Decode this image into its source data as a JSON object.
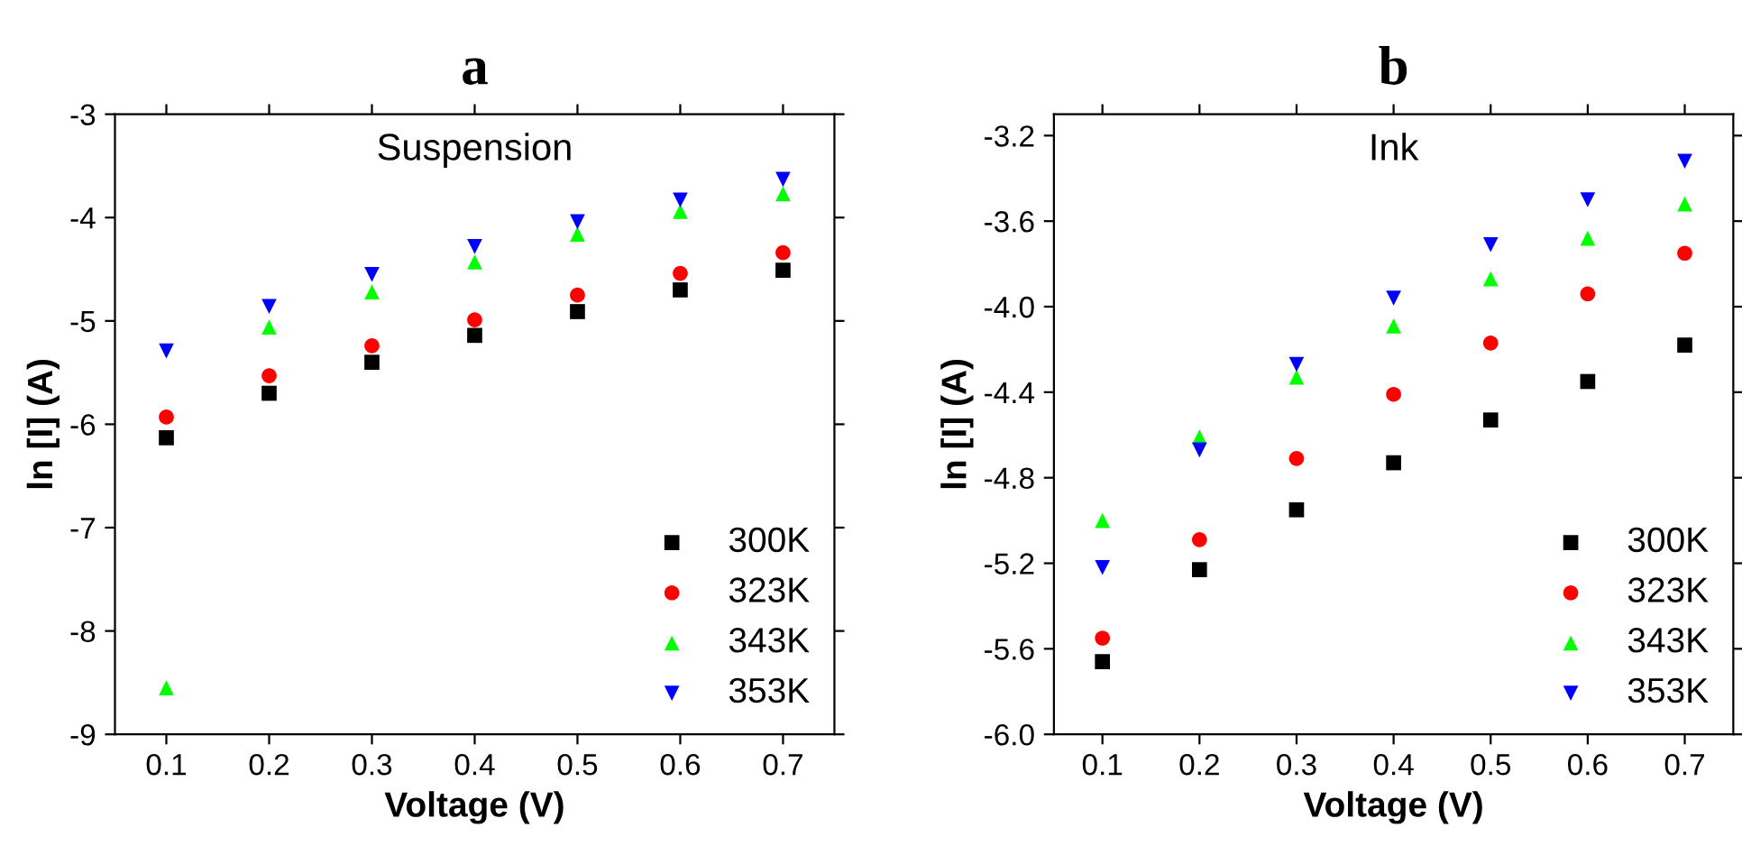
{
  "chart_data": [
    {
      "type": "scatter",
      "title": "a",
      "xlabel": "Voltage (V)",
      "ylabel": "ln [I] (A)",
      "annotations": [
        "Suspension"
      ],
      "x": [
        0.1,
        0.2,
        0.3,
        0.4,
        0.5,
        0.6,
        0.7
      ],
      "xlim": [
        0.05,
        0.75
      ],
      "xticks": [
        0.1,
        0.2,
        0.3,
        0.4,
        0.5,
        0.6,
        0.7
      ],
      "ylim": [
        -9,
        -3
      ],
      "yticks": [
        -9,
        -8,
        -7,
        -6,
        -5,
        -4,
        -3
      ],
      "legend": "bottom right",
      "grid": false,
      "series": [
        {
          "name": "300K",
          "color": "#000000",
          "marker": "square",
          "values": [
            -6.13,
            -5.7,
            -5.4,
            -5.14,
            -4.91,
            -4.7,
            -4.51
          ]
        },
        {
          "name": "323K",
          "color": "#ff0000",
          "marker": "circle",
          "values": [
            -5.93,
            -5.53,
            -5.24,
            -4.99,
            -4.75,
            -4.54,
            -4.34
          ]
        },
        {
          "name": "343K",
          "color": "#00ff00",
          "marker": "triangle",
          "values": [
            -8.55,
            -5.06,
            -4.72,
            -4.43,
            -4.16,
            -3.94,
            -3.77
          ]
        },
        {
          "name": "353K",
          "color": "#0000ff",
          "marker": "triangle_down",
          "values": [
            -5.29,
            -4.86,
            -4.55,
            -4.28,
            -4.04,
            -3.83,
            -3.63
          ]
        }
      ]
    },
    {
      "type": "scatter",
      "title": "b",
      "xlabel": "Voltage (V)",
      "ylabel": "ln [I] (A)",
      "annotations": [
        "Ink"
      ],
      "x": [
        0.1,
        0.2,
        0.3,
        0.4,
        0.5,
        0.6,
        0.7
      ],
      "xlim": [
        0.05,
        0.75
      ],
      "xticks": [
        0.1,
        0.2,
        0.3,
        0.4,
        0.5,
        0.6,
        0.7
      ],
      "ylim": [
        -6.0,
        -3.1
      ],
      "yticks": [
        {
          "value": -6.0,
          "label": "-6.0"
        },
        {
          "value": -5.6,
          "label": "-5.6"
        },
        {
          "value": -5.2,
          "label": "-5.2"
        },
        {
          "value": -4.8,
          "label": "-4.8"
        },
        {
          "value": -4.4,
          "label": "-4.4"
        },
        {
          "value": -4.0,
          "label": "-4.0"
        },
        {
          "value": -3.6,
          "label": "-3.6"
        },
        {
          "value": -3.2,
          "label": "-3.2"
        }
      ],
      "legend": "bottom right",
      "grid": false,
      "series": [
        {
          "name": "300K",
          "color": "#000000",
          "marker": "square",
          "values": [
            -5.66,
            -5.23,
            -4.95,
            -4.73,
            -4.53,
            -4.35,
            -4.18
          ]
        },
        {
          "name": "323K",
          "color": "#ff0000",
          "marker": "circle",
          "values": [
            -5.55,
            -5.09,
            -4.71,
            -4.41,
            -4.17,
            -3.94,
            -3.75
          ]
        },
        {
          "name": "343K",
          "color": "#00ff00",
          "marker": "triangle",
          "values": [
            -5.0,
            -4.61,
            -4.33,
            -4.09,
            -3.87,
            -3.68,
            -3.52
          ]
        },
        {
          "name": "353K",
          "color": "#0000ff",
          "marker": "triangle_down",
          "values": [
            -5.22,
            -4.67,
            -4.27,
            -3.96,
            -3.71,
            -3.5,
            -3.32
          ]
        }
      ]
    }
  ]
}
